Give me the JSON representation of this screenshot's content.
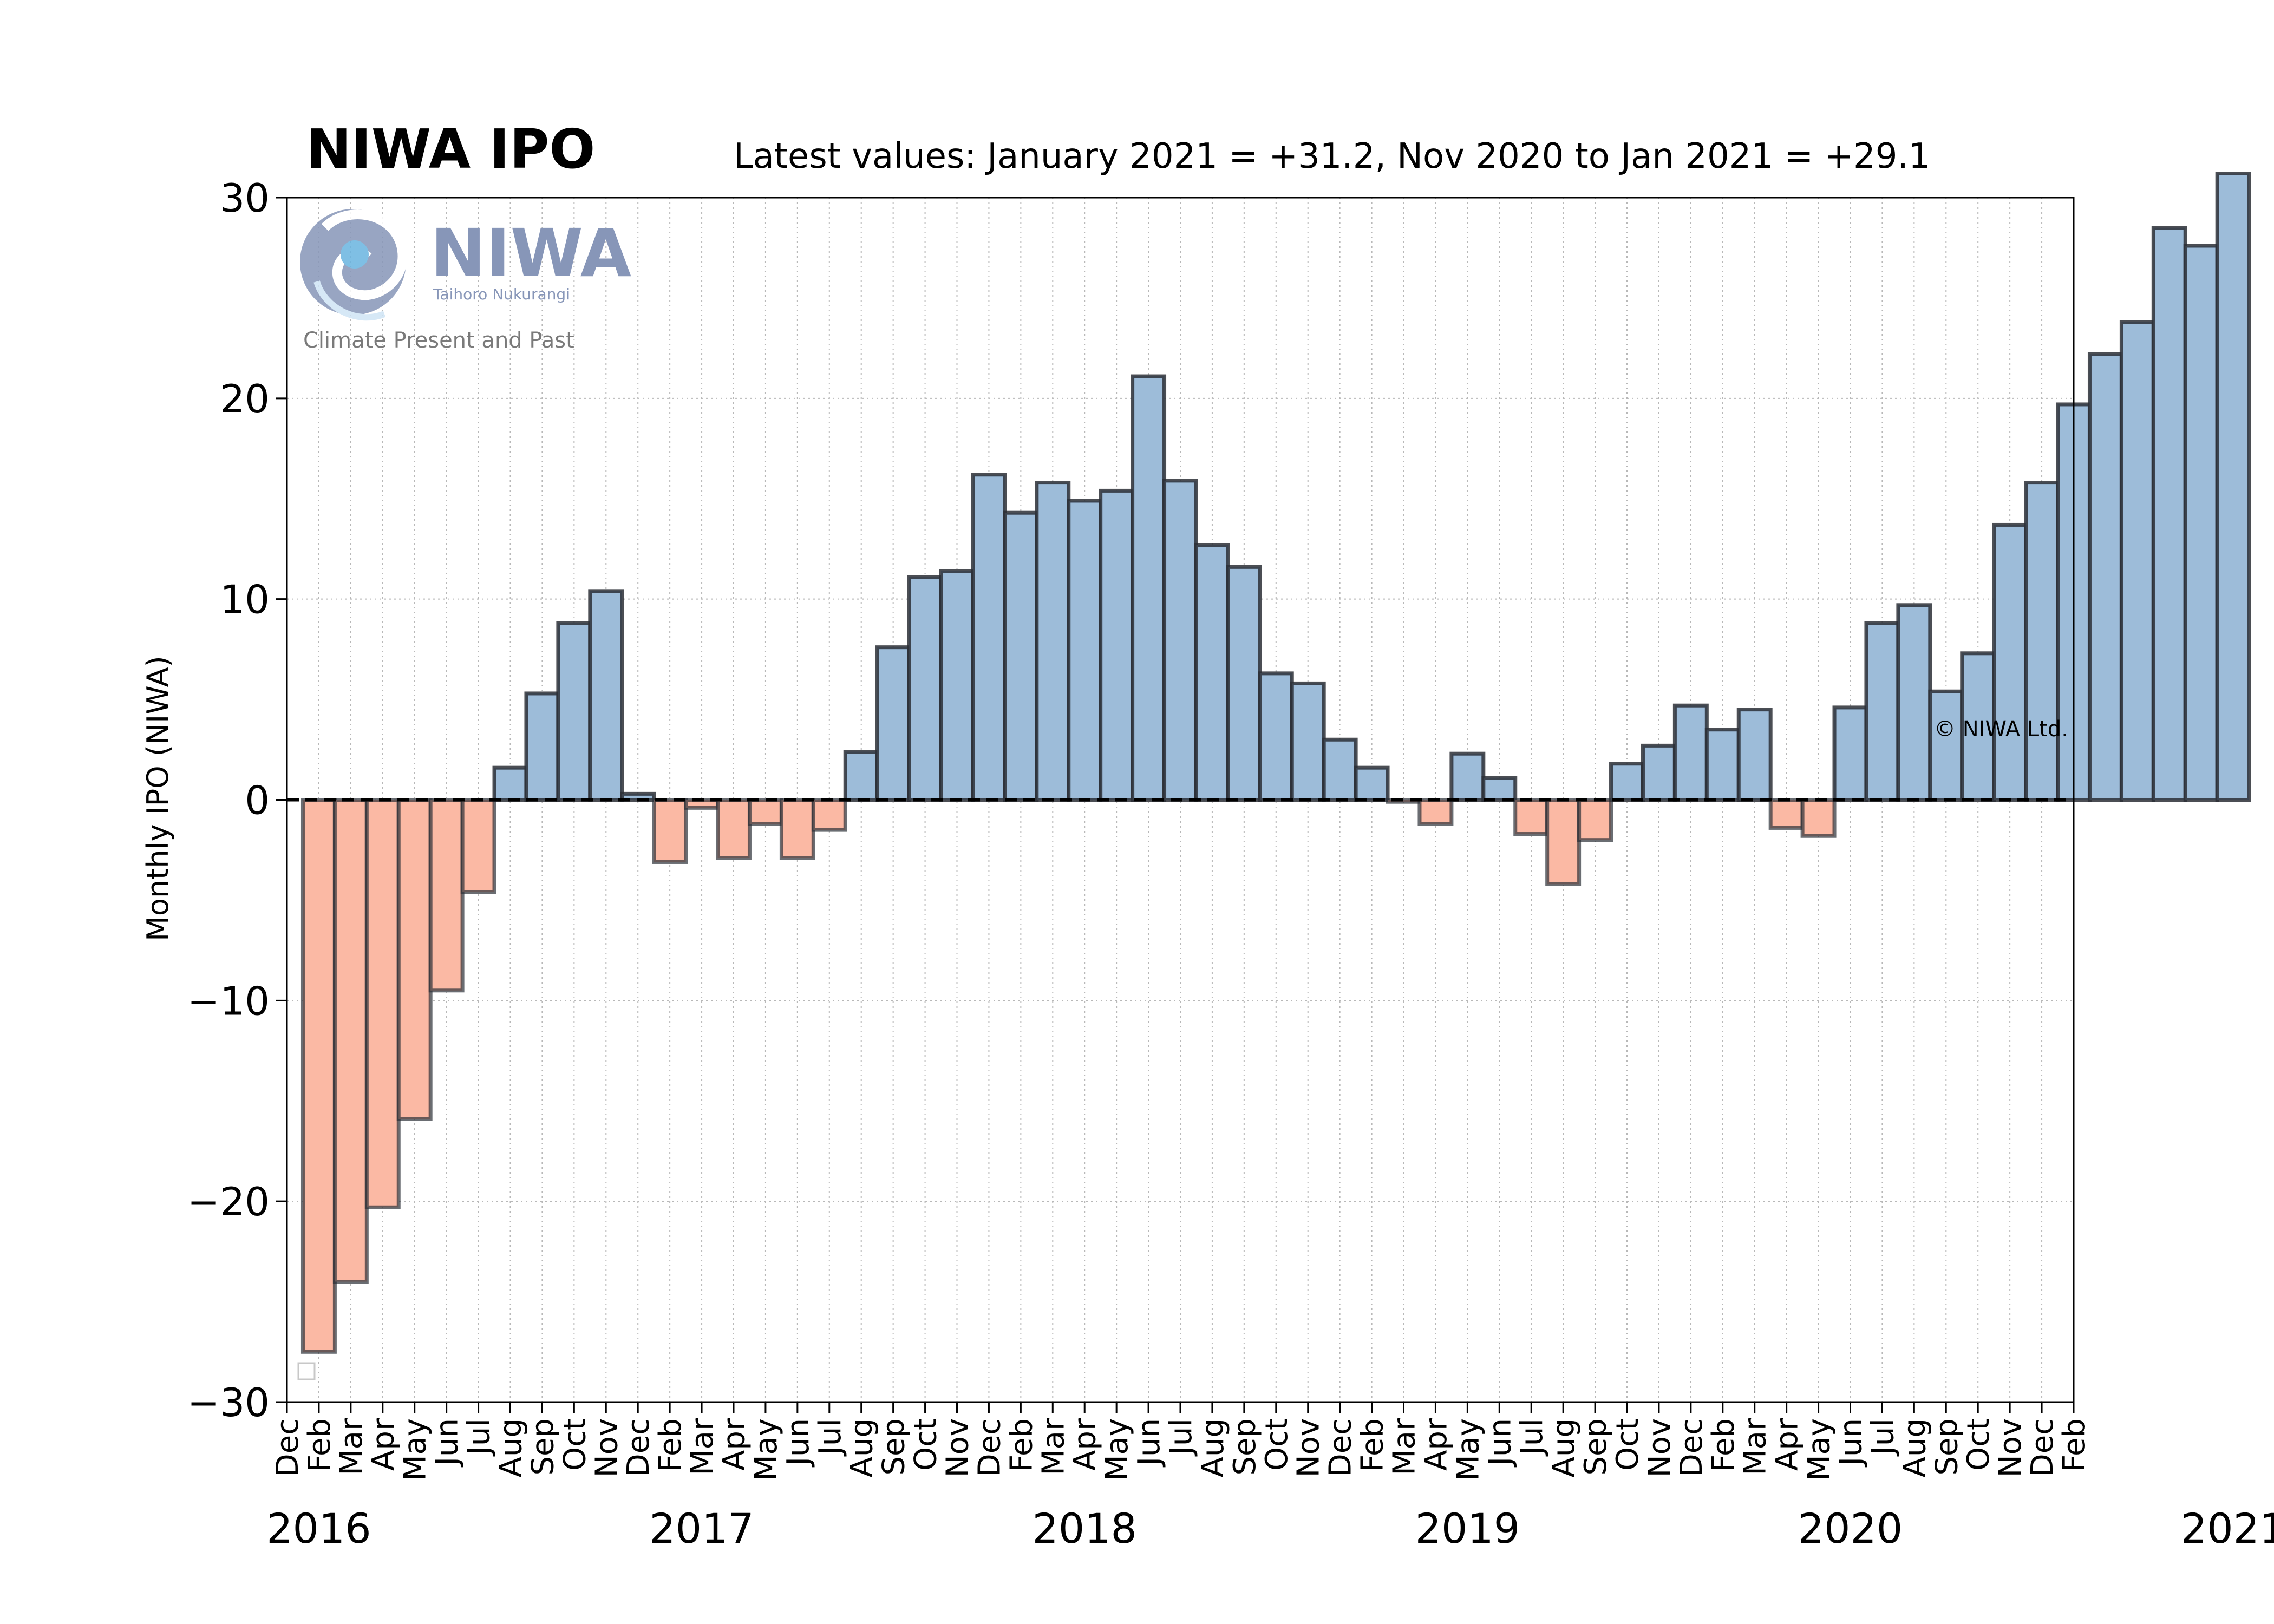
{
  "chart_data": {
    "type": "bar",
    "title": "NIWA IPO",
    "subtitle": "Latest values: January 2021 = +31.2, Nov 2020 to Jan 2021 = +29.1",
    "ylabel": "Monthly IPO (NIWA)",
    "xlabel": "",
    "ylim": [
      -30,
      30
    ],
    "yticks": [
      -30,
      -20,
      -10,
      0,
      10,
      20,
      30
    ],
    "ytick_labels": [
      "−30",
      "−20",
      "−10",
      "0",
      "10",
      "20",
      "30"
    ],
    "grid": true,
    "watermark_logo_text": "NIWA",
    "watermark_logo_tagline": "Taihoro Nukurangi",
    "watermark_caption": "Climate Present and Past",
    "copyright": "© NIWA Ltd.",
    "colors": {
      "positive": "#9dbcd9",
      "negative": "#fbb9a4",
      "edge": "#2b2f36"
    },
    "month_tick_labels": [
      "Dec",
      "Feb",
      "Mar",
      "Apr",
      "May",
      "Jun",
      "Jul",
      "Aug",
      "Sep",
      "Oct",
      "Nov",
      "Dec",
      "Feb",
      "Mar",
      "Apr",
      "May",
      "Jun",
      "Jul",
      "Aug",
      "Sep",
      "Oct",
      "Nov",
      "Dec",
      "Feb",
      "Mar",
      "Apr",
      "May",
      "Jun",
      "Jul",
      "Aug",
      "Sep",
      "Oct",
      "Nov",
      "Dec",
      "Feb",
      "Mar",
      "Apr",
      "May",
      "Jun",
      "Jul",
      "Aug",
      "Sep",
      "Oct",
      "Nov",
      "Dec",
      "Feb",
      "Mar",
      "Apr",
      "May",
      "Jun",
      "Jul",
      "Aug",
      "Sep",
      "Oct",
      "Nov",
      "Dec",
      "Feb"
    ],
    "year_labels": [
      "2016",
      "2017",
      "2018",
      "2019",
      "2020",
      "2021"
    ],
    "x": [
      "2016-01",
      "2016-02",
      "2016-03",
      "2016-04",
      "2016-05",
      "2016-06",
      "2016-07",
      "2016-08",
      "2016-09",
      "2016-10",
      "2016-11",
      "2016-12",
      "2017-01",
      "2017-02",
      "2017-03",
      "2017-04",
      "2017-05",
      "2017-06",
      "2017-07",
      "2017-08",
      "2017-09",
      "2017-10",
      "2017-11",
      "2017-12",
      "2018-01",
      "2018-02",
      "2018-03",
      "2018-04",
      "2018-05",
      "2018-06",
      "2018-07",
      "2018-08",
      "2018-09",
      "2018-10",
      "2018-11",
      "2018-12",
      "2019-01",
      "2019-02",
      "2019-03",
      "2019-04",
      "2019-05",
      "2019-06",
      "2019-07",
      "2019-08",
      "2019-09",
      "2019-10",
      "2019-11",
      "2019-12",
      "2020-01",
      "2020-02",
      "2020-03",
      "2020-04",
      "2020-05",
      "2020-06",
      "2020-07",
      "2020-08",
      "2020-09",
      "2020-10",
      "2020-11",
      "2020-12",
      "2021-01"
    ],
    "values": [
      -27.5,
      -24.0,
      -20.3,
      -15.9,
      -9.5,
      -4.6,
      1.6,
      5.3,
      8.8,
      10.4,
      0.3,
      -3.1,
      -0.4,
      -2.9,
      -1.2,
      -2.9,
      -1.5,
      2.4,
      7.6,
      11.1,
      11.4,
      16.2,
      14.3,
      15.8,
      14.9,
      15.4,
      21.1,
      15.9,
      12.7,
      11.6,
      6.3,
      5.8,
      3.0,
      1.6,
      -0.1,
      -1.2,
      2.3,
      1.1,
      -1.7,
      -4.2,
      -2.0,
      1.8,
      2.7,
      4.7,
      3.5,
      4.5,
      -1.4,
      -1.8,
      4.6,
      8.8,
      9.7,
      5.4,
      7.3,
      13.7,
      15.8,
      19.7,
      22.2,
      23.8,
      28.5,
      27.6,
      31.2
    ]
  }
}
